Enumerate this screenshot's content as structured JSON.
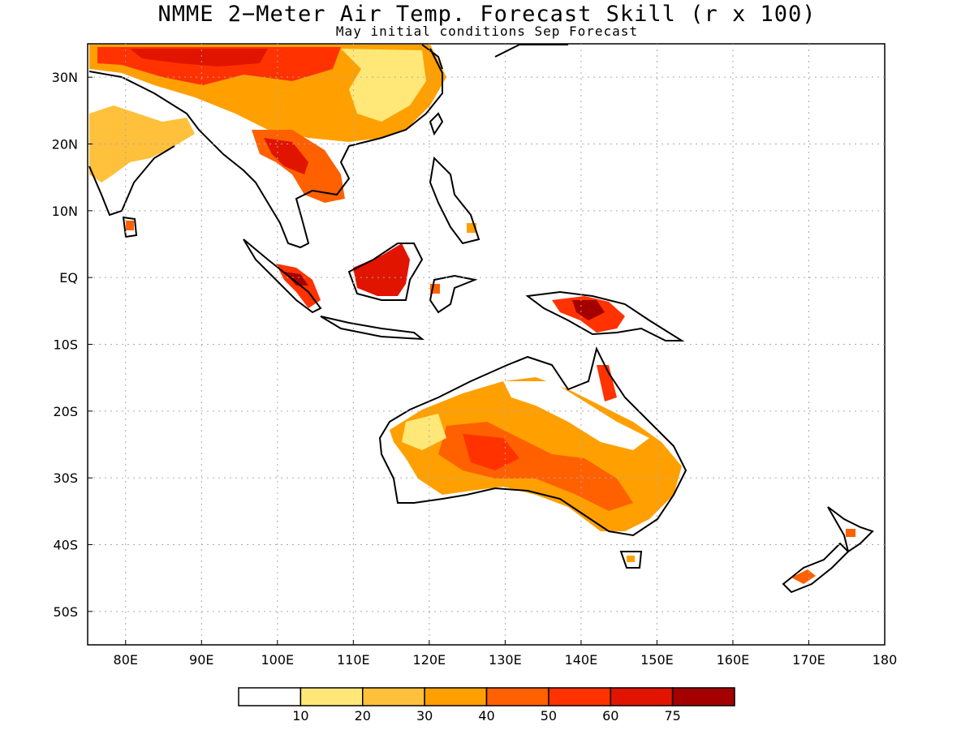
{
  "title": "NMME 2−Meter Air Temp. Forecast Skill (r x 100)",
  "subtitle": "May initial conditions  Sep Forecast",
  "map": {
    "lon_range": [
      75,
      180
    ],
    "lat_range": [
      -55,
      35
    ],
    "grid": true,
    "x_ticks": [
      "80E",
      "90E",
      "100E",
      "110E",
      "120E",
      "130E",
      "140E",
      "150E",
      "160E",
      "170E",
      "180"
    ],
    "y_ticks": [
      "30N",
      "20N",
      "10N",
      "EQ",
      "10S",
      "20S",
      "30S",
      "40S",
      "50S"
    ]
  },
  "colorbar": {
    "colors": [
      "#ffffff",
      "#ffe878",
      "#ffc03c",
      "#ffa000",
      "#ff6000",
      "#ff3200",
      "#e11400",
      "#a50000"
    ],
    "labels": [
      "10",
      "20",
      "30",
      "40",
      "50",
      "60",
      "75"
    ]
  }
}
